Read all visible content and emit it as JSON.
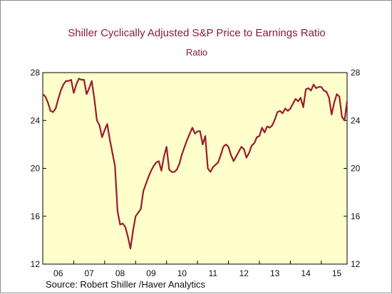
{
  "chart_data": {
    "type": "line",
    "title": "Shiller Cyclically Adjusted S&P Price to Earnings Ratio",
    "subtitle": "Ratio",
    "source": "Source:  Robert Shiller /Haver Analytics",
    "x_tick_labels": [
      "06",
      "07",
      "08",
      "09",
      "10",
      "11",
      "12",
      "13",
      "14",
      "15"
    ],
    "y_ticks": [
      12,
      16,
      20,
      24,
      28
    ],
    "ylim": [
      12,
      28
    ],
    "xlim": [
      2006.0,
      2015.833
    ],
    "grid": false,
    "series": [
      {
        "color": "#9b1b2b",
        "x": [
          2006.0,
          2006.083,
          2006.167,
          2006.25,
          2006.333,
          2006.417,
          2006.5,
          2006.583,
          2006.667,
          2006.75,
          2006.833,
          2006.917,
          2007.0,
          2007.083,
          2007.167,
          2007.25,
          2007.333,
          2007.417,
          2007.5,
          2007.583,
          2007.667,
          2007.75,
          2007.833,
          2007.917,
          2008.0,
          2008.083,
          2008.167,
          2008.25,
          2008.333,
          2008.417,
          2008.5,
          2008.583,
          2008.667,
          2008.75,
          2008.833,
          2008.917,
          2009.0,
          2009.083,
          2009.167,
          2009.25,
          2009.333,
          2009.417,
          2009.5,
          2009.583,
          2009.667,
          2009.75,
          2009.833,
          2009.917,
          2010.0,
          2010.083,
          2010.167,
          2010.25,
          2010.333,
          2010.417,
          2010.5,
          2010.583,
          2010.667,
          2010.75,
          2010.833,
          2010.917,
          2011.0,
          2011.083,
          2011.167,
          2011.25,
          2011.333,
          2011.417,
          2011.5,
          2011.583,
          2011.667,
          2011.75,
          2011.833,
          2011.917,
          2012.0,
          2012.083,
          2012.167,
          2012.25,
          2012.333,
          2012.417,
          2012.5,
          2012.583,
          2012.667,
          2012.75,
          2012.833,
          2012.917,
          2013.0,
          2013.083,
          2013.167,
          2013.25,
          2013.333,
          2013.417,
          2013.5,
          2013.583,
          2013.667,
          2013.75,
          2013.833,
          2013.917,
          2014.0,
          2014.083,
          2014.167,
          2014.25,
          2014.333,
          2014.417,
          2014.5,
          2014.583,
          2014.667,
          2014.75,
          2014.833,
          2014.917,
          2015.0,
          2015.083,
          2015.167,
          2015.25,
          2015.333,
          2015.417,
          2015.5,
          2015.583,
          2015.667,
          2015.75,
          2015.833
        ],
        "values": [
          26.2,
          26.0,
          25.5,
          24.8,
          24.7,
          25.0,
          25.8,
          26.5,
          27.0,
          27.3,
          27.3,
          27.4,
          26.3,
          27.0,
          27.5,
          27.4,
          27.4,
          26.2,
          26.7,
          27.3,
          25.8,
          24.0,
          23.6,
          22.6,
          23.2,
          23.7,
          22.4,
          21.3,
          20.2,
          16.4,
          15.3,
          15.4,
          15.1,
          14.3,
          13.3,
          14.8,
          16.0,
          16.3,
          16.6,
          18.1,
          18.7,
          19.3,
          19.8,
          20.2,
          20.5,
          20.6,
          19.8,
          21.0,
          21.8,
          19.9,
          19.7,
          19.7,
          19.9,
          20.4,
          21.2,
          21.8,
          22.4,
          22.9,
          23.4,
          22.9,
          23.1,
          23.1,
          22.0,
          22.7,
          20.0,
          19.7,
          20.1,
          20.3,
          20.5,
          21.1,
          21.8,
          22.0,
          21.8,
          21.1,
          20.6,
          21.0,
          21.4,
          21.8,
          21.6,
          20.9,
          21.3,
          21.9,
          22.1,
          22.6,
          22.7,
          23.4,
          23.0,
          23.5,
          23.4,
          23.6,
          24.1,
          24.7,
          24.8,
          24.6,
          25.0,
          24.8,
          25.0,
          25.4,
          25.8,
          25.6,
          25.9,
          25.1,
          26.6,
          26.7,
          26.5,
          27.0,
          26.7,
          26.8,
          26.8,
          26.5,
          26.4,
          25.9,
          24.5,
          25.5,
          26.2,
          26.0,
          24.3,
          24.0,
          25.6
        ]
      }
    ]
  }
}
